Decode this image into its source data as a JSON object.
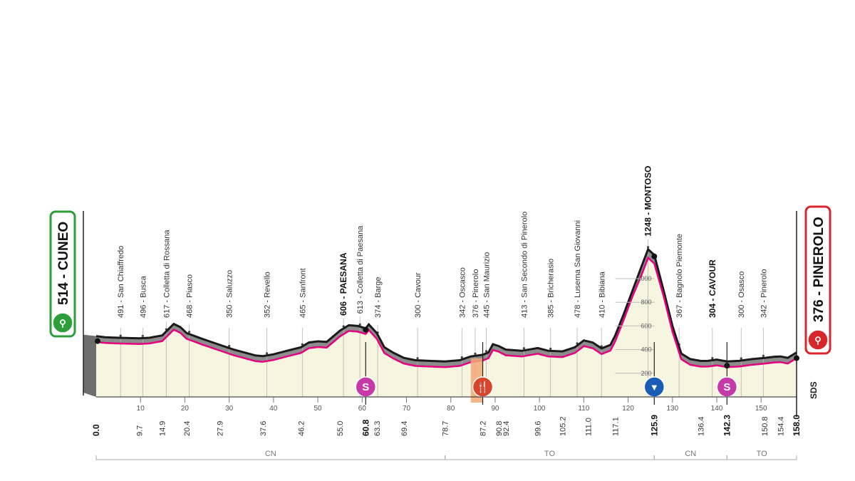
{
  "chart_data": {
    "type": "area",
    "xlabel": "",
    "ylabel": "",
    "xlim": [
      0,
      158.0
    ],
    "ylim": [
      0,
      1300
    ],
    "grid": false,
    "x_ticks": [
      10,
      20,
      30,
      40,
      50,
      60,
      70,
      80,
      90,
      100,
      110,
      120,
      130,
      140,
      150
    ],
    "y_ticks": [
      200,
      400,
      600,
      800,
      1000
    ],
    "profile": [
      [
        0.0,
        514
      ],
      [
        2,
        505
      ],
      [
        5,
        500
      ],
      [
        9.7,
        496
      ],
      [
        12,
        500
      ],
      [
        14.9,
        520
      ],
      [
        16.5,
        580
      ],
      [
        17.5,
        617
      ],
      [
        19,
        590
      ],
      [
        20.4,
        540
      ],
      [
        24,
        490
      ],
      [
        27.9,
        440
      ],
      [
        31,
        400
      ],
      [
        34,
        370
      ],
      [
        36,
        350
      ],
      [
        37.6,
        345
      ],
      [
        40,
        360
      ],
      [
        43,
        390
      ],
      [
        46.2,
        420
      ],
      [
        48,
        460
      ],
      [
        50,
        470
      ],
      [
        52,
        465
      ],
      [
        55.0,
        560
      ],
      [
        57,
        606
      ],
      [
        59,
        600
      ],
      [
        60.8,
        580
      ],
      [
        61.5,
        613
      ],
      [
        63.3,
        540
      ],
      [
        65,
        420
      ],
      [
        67,
        374
      ],
      [
        69.4,
        330
      ],
      [
        72,
        310
      ],
      [
        75,
        305
      ],
      [
        78.7,
        300
      ],
      [
        82,
        310
      ],
      [
        84.5,
        342
      ],
      [
        87.2,
        356
      ],
      [
        88.5,
        376
      ],
      [
        89.5,
        445
      ],
      [
        90.8,
        430
      ],
      [
        92.4,
        400
      ],
      [
        96,
        390
      ],
      [
        99.6,
        413
      ],
      [
        102,
        390
      ],
      [
        105.2,
        385
      ],
      [
        108,
        420
      ],
      [
        110,
        478
      ],
      [
        112,
        460
      ],
      [
        114,
        410
      ],
      [
        116,
        440
      ],
      [
        117.1,
        520
      ],
      [
        119,
        700
      ],
      [
        121,
        900
      ],
      [
        123,
        1100
      ],
      [
        124.5,
        1248
      ],
      [
        125.9,
        1200
      ],
      [
        128,
        900
      ],
      [
        130,
        600
      ],
      [
        132,
        367
      ],
      [
        134,
        320
      ],
      [
        136.4,
        304
      ],
      [
        138,
        305
      ],
      [
        140,
        315
      ],
      [
        142.3,
        300
      ],
      [
        145,
        305
      ],
      [
        148,
        320
      ],
      [
        150.8,
        330
      ],
      [
        153,
        340
      ],
      [
        154.4,
        342
      ],
      [
        156,
        330
      ],
      [
        158.0,
        376
      ]
    ],
    "km_labels": [
      "0.0",
      "9.7",
      "14.9",
      "20.4",
      "27.9",
      "37.6",
      "46.2",
      "55.0",
      "60.8",
      "63.3",
      "69.4",
      "78.7",
      "87.2",
      "90.8",
      "92.4",
      "99.6",
      "105.2",
      "111.0",
      "117.1",
      "125.9",
      "136.4",
      "142.3",
      "150.8",
      "154.4",
      "158.0"
    ],
    "km_values": [
      0.0,
      9.7,
      14.9,
      20.4,
      27.9,
      37.6,
      46.2,
      55.0,
      60.8,
      63.3,
      69.4,
      78.7,
      87.2,
      90.8,
      92.4,
      99.6,
      105.2,
      111.0,
      117.1,
      125.9,
      136.4,
      142.3,
      150.8,
      154.4,
      158.0
    ],
    "km_bold": [
      "0.0",
      "60.8",
      "125.9",
      "142.3",
      "158.0"
    ],
    "waypoints": [
      {
        "km": 5.5,
        "label": "491 - San Chiaffredo",
        "bold": false
      },
      {
        "km": 10.5,
        "label": "496 - Busca",
        "bold": false
      },
      {
        "km": 15.8,
        "label": "617 - Colletta di Rossana",
        "bold": false
      },
      {
        "km": 21.0,
        "label": "468 - Piasco",
        "bold": false
      },
      {
        "km": 30.0,
        "label": "350 - Saluzzo",
        "bold": false
      },
      {
        "km": 38.5,
        "label": "352 - Revello",
        "bold": false
      },
      {
        "km": 46.5,
        "label": "465 - Sanfront",
        "bold": false
      },
      {
        "km": 55.8,
        "label": "606 - PAESANA",
        "bold": true
      },
      {
        "km": 59.5,
        "label": "613 - Colletta di Paesana",
        "bold": false
      },
      {
        "km": 63.5,
        "label": "374 - Barge",
        "bold": false
      },
      {
        "km": 72.5,
        "label": "300 - Cavour",
        "bold": false
      },
      {
        "km": 82.5,
        "label": "342 - Oscasco",
        "bold": false
      },
      {
        "km": 85.5,
        "label": "376 - Pinerolo",
        "bold": false
      },
      {
        "km": 88.0,
        "label": "445 - San Maurizio",
        "bold": false
      },
      {
        "km": 96.5,
        "label": "413 - San Secondo di Pinerolo",
        "bold": false
      },
      {
        "km": 102.5,
        "label": "385 - Bricherasio",
        "bold": false
      },
      {
        "km": 108.5,
        "label": "478 - Luserna San Giovanni",
        "bold": false
      },
      {
        "km": 114.0,
        "label": "410 - Bibiana",
        "bold": false
      },
      {
        "km": 124.5,
        "label": "1248 - MONTOSO",
        "bold": true
      },
      {
        "km": 131.5,
        "label": "367 - Bagnolo Piemonte",
        "bold": false
      },
      {
        "km": 139.0,
        "label": "304 - CAVOUR",
        "bold": true
      },
      {
        "km": 145.5,
        "label": "300 - Osasco",
        "bold": false
      },
      {
        "km": 150.5,
        "label": "342 - Pinerolo",
        "bold": false
      }
    ],
    "start": {
      "label": "514 - CUNEO",
      "color": "#2e9e3a"
    },
    "finish": {
      "label": "376 - PINEROLO",
      "color": "#d8262b"
    },
    "markers": [
      {
        "km": 60.8,
        "kind": "sprint",
        "text": "S",
        "color": "#c63aa8"
      },
      {
        "km": 87.2,
        "kind": "feed",
        "text": "🍴",
        "color": "#d8452b"
      },
      {
        "km": 125.9,
        "kind": "kom",
        "text": "▼",
        "color": "#1a5bb5"
      },
      {
        "km": 142.3,
        "kind": "sprint",
        "text": "S",
        "color": "#c63aa8"
      }
    ],
    "feed_zone": [
      84.5,
      87.2
    ],
    "provinces": [
      {
        "label": "CN",
        "from": 0.0,
        "to": 78.7
      },
      {
        "label": "TO",
        "from": 78.7,
        "to": 125.9
      },
      {
        "label": "CN",
        "from": 125.9,
        "to": 142.3
      },
      {
        "label": "TO",
        "from": 142.3,
        "to": 158.0
      }
    ],
    "logo": "SDS",
    "colors": {
      "road": "#e6007e",
      "relief": "#8c8c8c",
      "ground": "#f5f5e0",
      "ridge": "#1a1a1a"
    }
  }
}
